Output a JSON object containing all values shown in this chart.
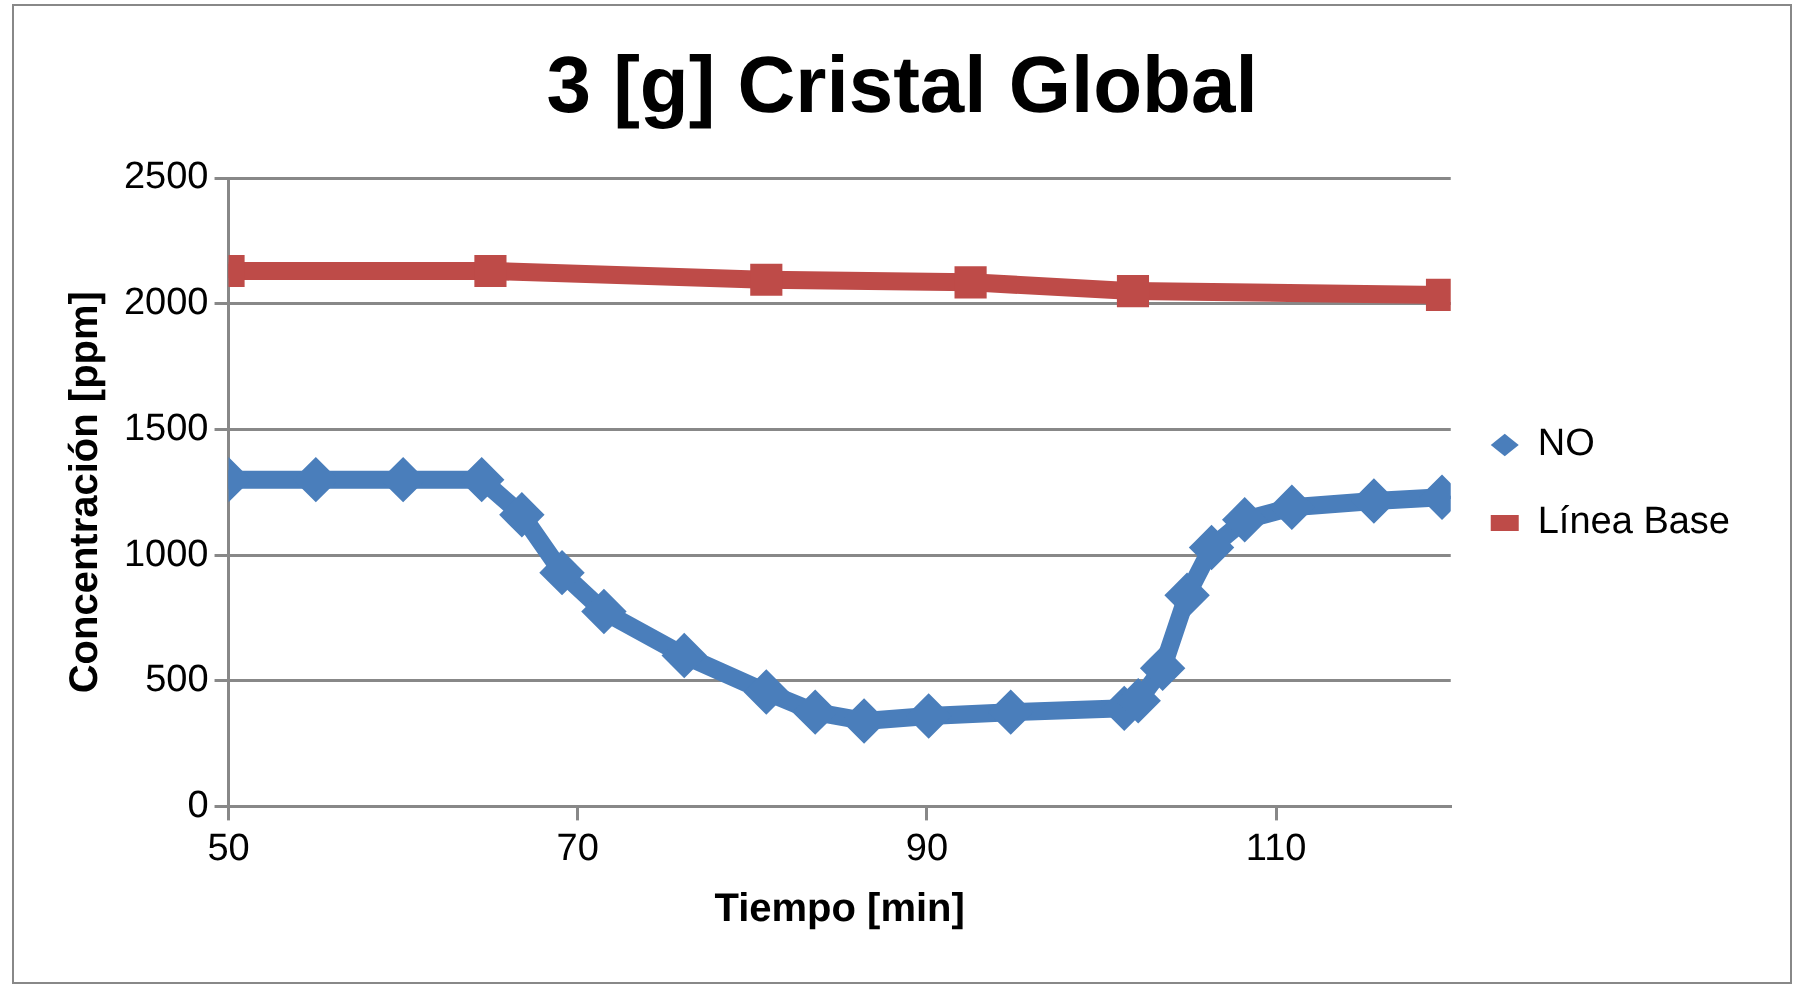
{
  "chart_data": {
    "type": "line",
    "title": "3 [g] Cristal Global",
    "xlabel": "Tiempo [min]",
    "ylabel": "Concentración [ppm]",
    "xlim": [
      50,
      120
    ],
    "xticks": [
      50,
      70,
      90,
      110
    ],
    "ylim": [
      0,
      2500
    ],
    "yticks": [
      0,
      500,
      1000,
      1500,
      2000,
      2500
    ],
    "grid": "y",
    "legend": "right",
    "series": [
      {
        "name": "NO",
        "color": "#4a7ebb",
        "marker": "diamond",
        "x": [
          50,
          55,
          60,
          64.5,
          66.8,
          69.1,
          71.5,
          76.1,
          80.8,
          83.6,
          86.4,
          90.1,
          94.8,
          101.3,
          102.1,
          103.5,
          104.9,
          106.3,
          108.2,
          110.9,
          115.6,
          119.5
        ],
        "values": [
          1300,
          1300,
          1300,
          1300,
          1160,
          930,
          775,
          600,
          455,
          375,
          340,
          360,
          375,
          390,
          420,
          550,
          840,
          1030,
          1140,
          1190,
          1215,
          1230
        ]
      },
      {
        "name": "Línea Base",
        "color": "#be4b48",
        "marker": "square",
        "x": [
          50,
          65,
          80.8,
          92.5,
          101.8,
          119.5
        ],
        "values": [
          2130,
          2130,
          2095,
          2085,
          2050,
          2035
        ]
      }
    ]
  }
}
